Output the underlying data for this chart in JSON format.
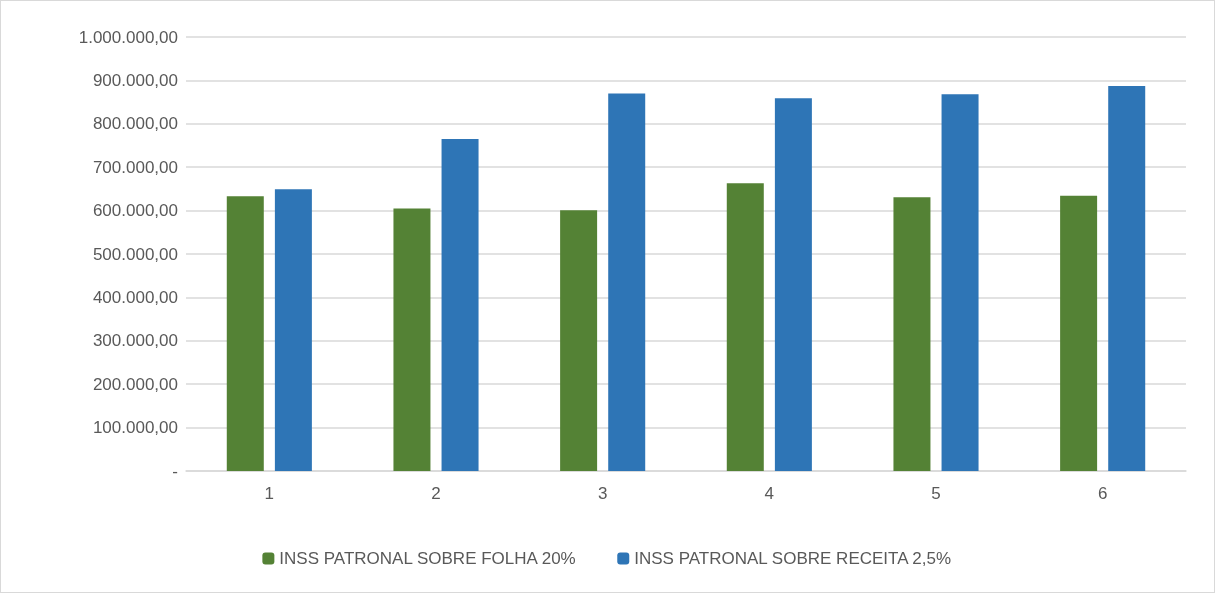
{
  "chart_data": {
    "type": "bar",
    "categories": [
      "1",
      "2",
      "3",
      "4",
      "5",
      "6"
    ],
    "series": [
      {
        "name": "INSS PATRONAL SOBRE FOLHA 20%",
        "color": "#548235",
        "values": [
          633000,
          605000,
          601000,
          663000,
          631000,
          634000
        ]
      },
      {
        "name": "INSS PATRONAL SOBRE RECEITA 2,5%",
        "color": "#2e75b6",
        "values": [
          649000,
          765000,
          870000,
          859000,
          868000,
          887000
        ]
      }
    ],
    "ylim": [
      0,
      1000000
    ],
    "yticks": [
      {
        "value": 0,
        "label": "-"
      },
      {
        "value": 100000,
        "label": "100.000,00"
      },
      {
        "value": 200000,
        "label": "200.000,00"
      },
      {
        "value": 300000,
        "label": "300.000,00"
      },
      {
        "value": 400000,
        "label": "400.000,00"
      },
      {
        "value": 500000,
        "label": "500.000,00"
      },
      {
        "value": 600000,
        "label": "600.000,00"
      },
      {
        "value": 700000,
        "label": "700.000,00"
      },
      {
        "value": 800000,
        "label": "800.000,00"
      },
      {
        "value": 900000,
        "label": "900.000,00"
      },
      {
        "value": 1000000,
        "label": "1.000.000,00"
      }
    ],
    "grid": "y",
    "legend": "bottom"
  }
}
